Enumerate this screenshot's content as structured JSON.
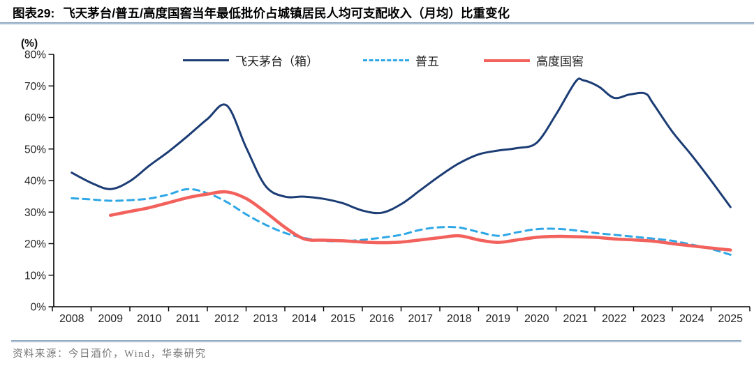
{
  "header": {
    "label": "图表29:",
    "title": "飞天茅台/普五/高度国窖当年最低批价占城镇居民人均可支配收入（月均）比重变化"
  },
  "footer": {
    "source": "资料来源：今日酒价，Wind，华泰研究"
  },
  "chart_data": {
    "type": "line",
    "title": "飞天茅台/普五/高度国窖当年最低批价占城镇居民人均可支配收入（月均）比重变化",
    "xlabel": "",
    "ylabel": "(%)",
    "y_unit_label": "(%)",
    "ylim": [
      0,
      80
    ],
    "grid": false,
    "legend_position": "top",
    "y_ticks": [
      "80%",
      "70%",
      "60%",
      "50%",
      "40%",
      "30%",
      "20%",
      "10%",
      "0%"
    ],
    "categories": [
      2008,
      2009,
      2010,
      2011,
      2012,
      2013,
      2014,
      2015,
      2016,
      2017,
      2018,
      2019,
      2020,
      2021,
      2022,
      2023,
      2024,
      2025
    ],
    "axis_color": "#000000",
    "tick_label_color": "#262626",
    "series": [
      {
        "name": "飞天茅台（箱）",
        "color": "#1b3c74",
        "line_style": "solid",
        "points": [
          [
            2008,
            42.5
          ],
          [
            2008.5,
            39.3
          ],
          [
            2009,
            37.3
          ],
          [
            2009.5,
            39.8
          ],
          [
            2010,
            44.7
          ],
          [
            2010.5,
            49.2
          ],
          [
            2011,
            54.2
          ],
          [
            2011.5,
            59.5
          ],
          [
            2012,
            63.8
          ],
          [
            2012.5,
            50.5
          ],
          [
            2013,
            38.3
          ],
          [
            2013.5,
            34.9
          ],
          [
            2014,
            34.9
          ],
          [
            2014.5,
            34.2
          ],
          [
            2015,
            32.8
          ],
          [
            2015.5,
            30.5
          ],
          [
            2016,
            29.8
          ],
          [
            2016.5,
            32.5
          ],
          [
            2017,
            37.0
          ],
          [
            2017.5,
            41.5
          ],
          [
            2018,
            45.5
          ],
          [
            2018.5,
            48.3
          ],
          [
            2019,
            49.5
          ],
          [
            2019.5,
            50.3
          ],
          [
            2020,
            52.0
          ],
          [
            2020.5,
            61.0
          ],
          [
            2021,
            71.3
          ],
          [
            2021.2,
            71.8
          ],
          [
            2021.6,
            69.8
          ],
          [
            2022,
            66.2
          ],
          [
            2022.4,
            67.3
          ],
          [
            2022.8,
            67.6
          ],
          [
            2023,
            64.5
          ],
          [
            2023.5,
            55.5
          ],
          [
            2024,
            48.0
          ],
          [
            2024.5,
            40.0
          ],
          [
            2025,
            31.6
          ]
        ]
      },
      {
        "name": "普五",
        "color": "#2ea7e6",
        "line_style": "dashed",
        "points": [
          [
            2008,
            34.4
          ],
          [
            2008.5,
            34.0
          ],
          [
            2009,
            33.6
          ],
          [
            2009.5,
            33.8
          ],
          [
            2010,
            34.3
          ],
          [
            2010.5,
            35.6
          ],
          [
            2011,
            37.3
          ],
          [
            2011.5,
            36.0
          ],
          [
            2012,
            33.2
          ],
          [
            2012.5,
            29.3
          ],
          [
            2013,
            26.0
          ],
          [
            2013.5,
            23.4
          ],
          [
            2014,
            21.8
          ],
          [
            2014.5,
            20.9
          ],
          [
            2015,
            20.8
          ],
          [
            2015.5,
            21.2
          ],
          [
            2016,
            21.9
          ],
          [
            2016.5,
            22.8
          ],
          [
            2017,
            24.4
          ],
          [
            2017.5,
            25.2
          ],
          [
            2018,
            25.1
          ],
          [
            2018.5,
            23.7
          ],
          [
            2019,
            22.5
          ],
          [
            2019.5,
            23.6
          ],
          [
            2020,
            24.6
          ],
          [
            2020.5,
            24.7
          ],
          [
            2021,
            24.2
          ],
          [
            2021.5,
            23.4
          ],
          [
            2022,
            22.8
          ],
          [
            2022.5,
            22.2
          ],
          [
            2023,
            21.6
          ],
          [
            2023.5,
            20.9
          ],
          [
            2024,
            19.7
          ],
          [
            2024.5,
            18.3
          ],
          [
            2025,
            16.5
          ]
        ]
      },
      {
        "name": "高度国窖",
        "color": "#f2615c",
        "line_style": "solid",
        "points": [
          [
            2009,
            29.0
          ],
          [
            2009.5,
            30.2
          ],
          [
            2010,
            31.4
          ],
          [
            2010.5,
            33.0
          ],
          [
            2011,
            34.6
          ],
          [
            2011.5,
            35.7
          ],
          [
            2012,
            36.4
          ],
          [
            2012.5,
            34.3
          ],
          [
            2013,
            30.0
          ],
          [
            2013.5,
            25.2
          ],
          [
            2014,
            21.5
          ],
          [
            2014.5,
            21.1
          ],
          [
            2015,
            20.9
          ],
          [
            2015.5,
            20.5
          ],
          [
            2016,
            20.3
          ],
          [
            2016.5,
            20.5
          ],
          [
            2017,
            21.2
          ],
          [
            2017.5,
            21.9
          ],
          [
            2018,
            22.5
          ],
          [
            2018.5,
            21.2
          ],
          [
            2019,
            20.4
          ],
          [
            2019.5,
            21.2
          ],
          [
            2020,
            22.0
          ],
          [
            2020.5,
            22.3
          ],
          [
            2021,
            22.2
          ],
          [
            2021.5,
            22.0
          ],
          [
            2022,
            21.5
          ],
          [
            2022.5,
            21.2
          ],
          [
            2023,
            20.8
          ],
          [
            2023.5,
            20.0
          ],
          [
            2024,
            19.3
          ],
          [
            2024.5,
            18.6
          ],
          [
            2025,
            18.0
          ]
        ]
      }
    ]
  }
}
